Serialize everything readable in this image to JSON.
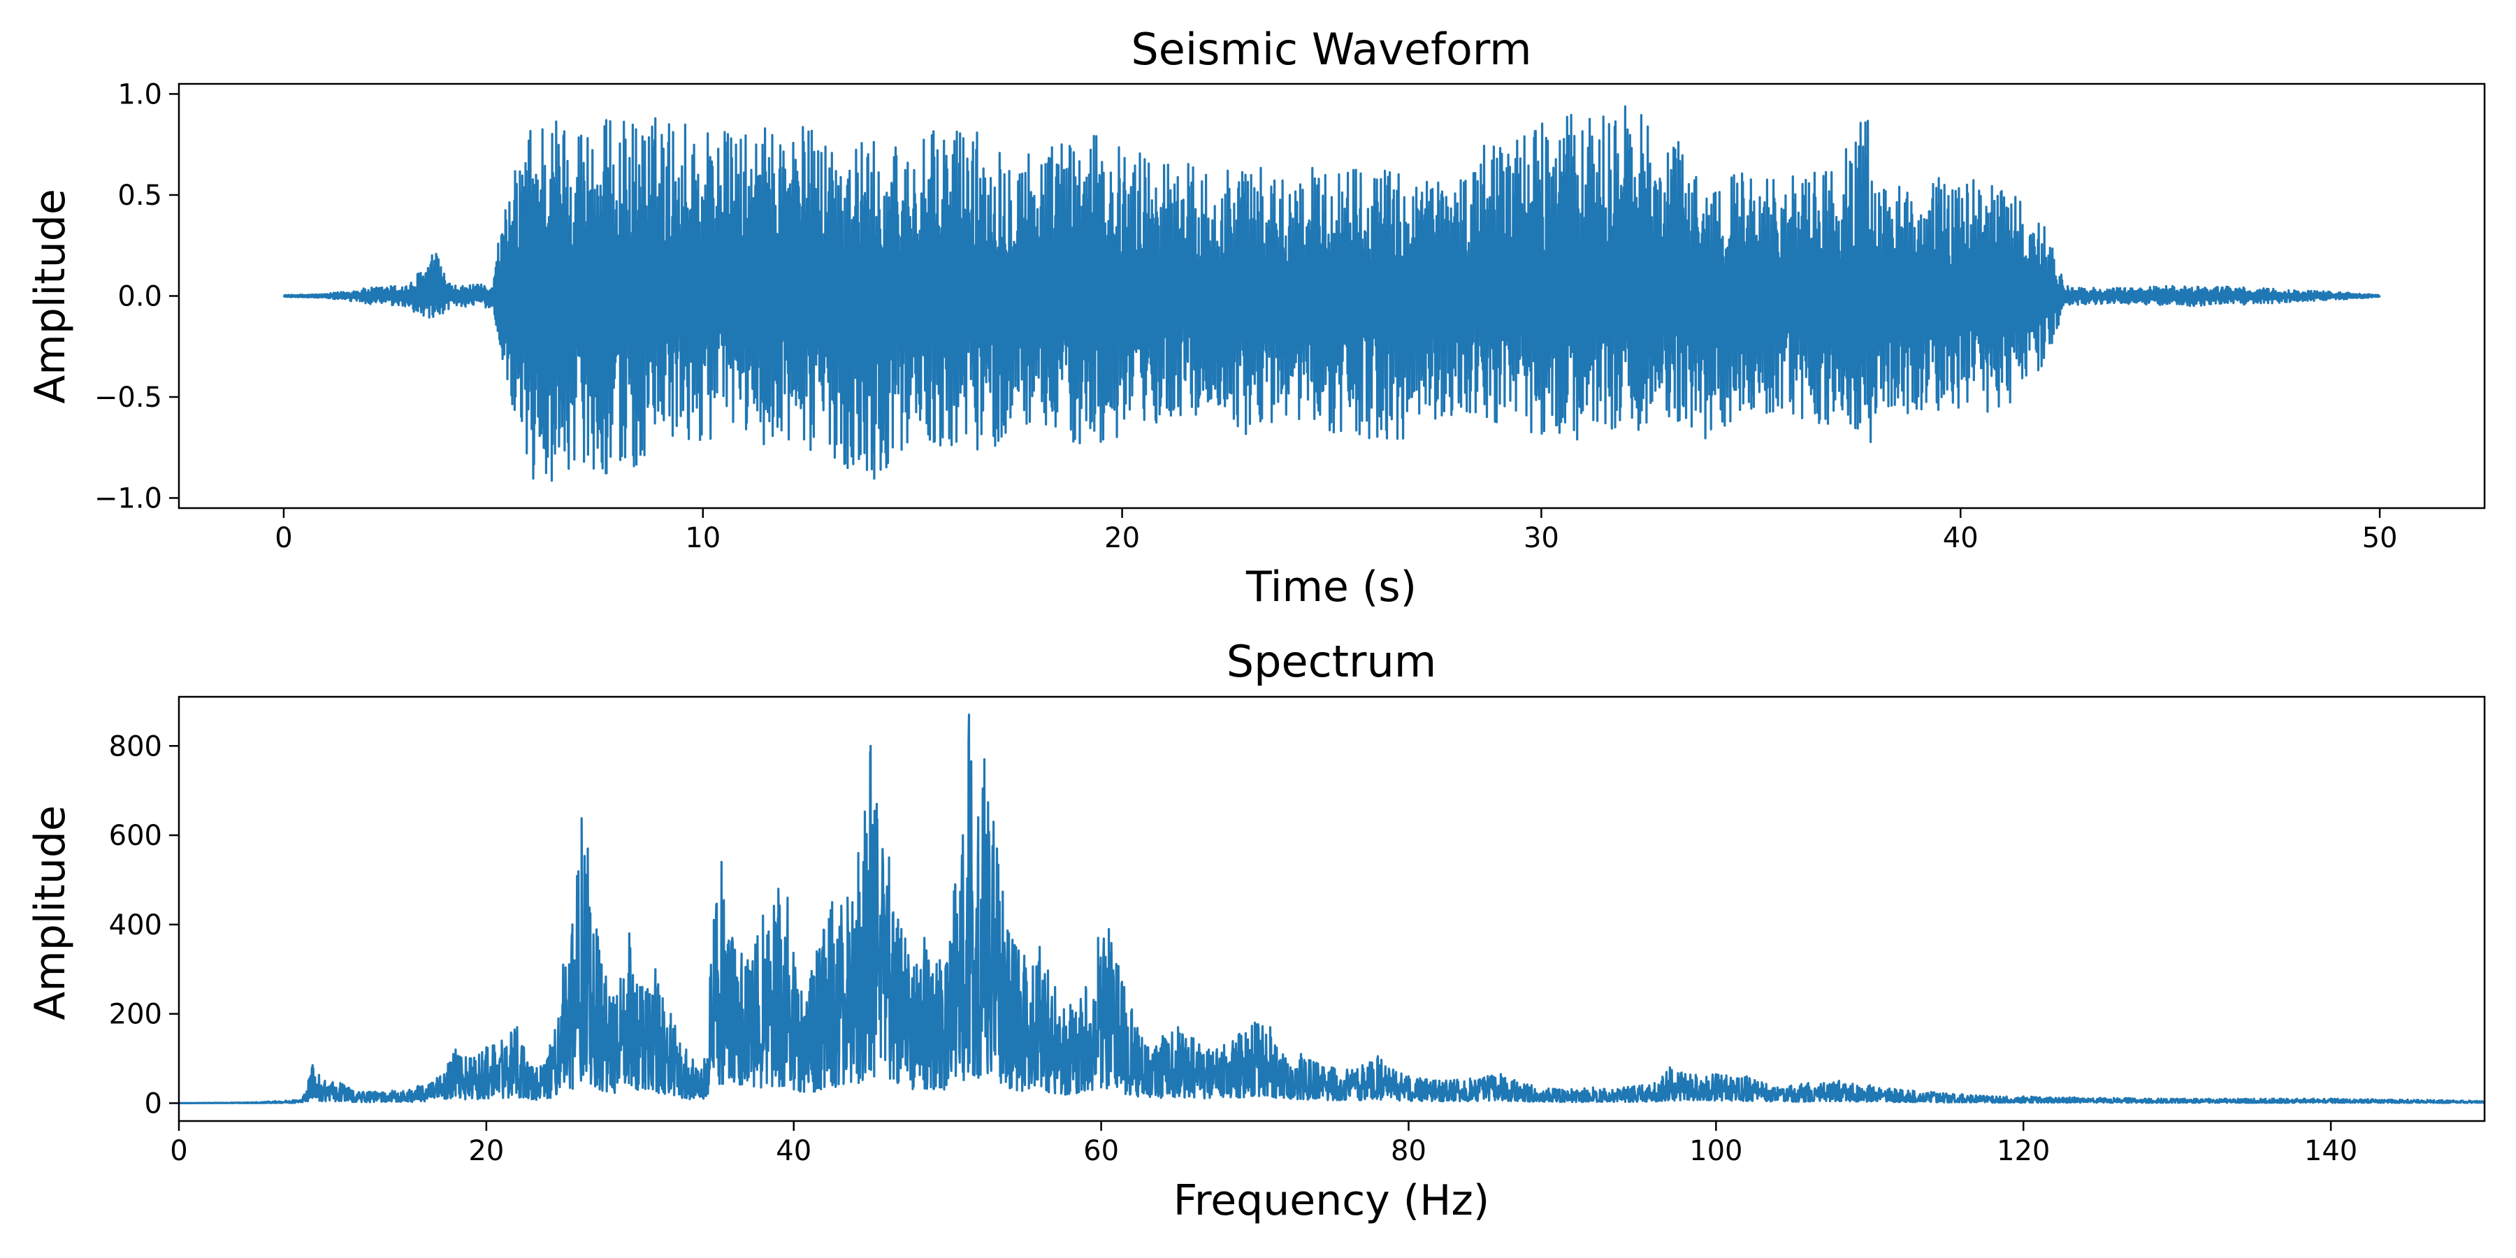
{
  "chart_data": [
    {
      "type": "line",
      "title": "Seismic Waveform",
      "xlabel": "Time (s)",
      "ylabel": "Amplitude",
      "xlim": [
        -2.5,
        52.5
      ],
      "ylim": [
        -1.05,
        1.05
      ],
      "xticks": [
        0,
        10,
        20,
        30,
        40,
        50
      ],
      "yticks": [
        -1.0,
        -0.5,
        0.0,
        0.5,
        1.0
      ],
      "xtick_labels": [
        "0",
        "10",
        "20",
        "30",
        "40",
        "50"
      ],
      "ytick_labels": [
        "−1.0",
        "−0.5",
        "0.0",
        "0.5",
        "1.0"
      ],
      "grid": false,
      "color": "#1f77b4",
      "series": [
        {
          "x": [
            0,
            1,
            2,
            3,
            3.6,
            4,
            5,
            5.1,
            5.7,
            6,
            7,
            8,
            9,
            10,
            11,
            12,
            13,
            14,
            15,
            16,
            17,
            18,
            19,
            20,
            21,
            22,
            23,
            24,
            25,
            26,
            27,
            28,
            29,
            30,
            31,
            32,
            33,
            34,
            35,
            36,
            37,
            37.8,
            38,
            39,
            40,
            41,
            42,
            42.5,
            43,
            44,
            45,
            46,
            47,
            48,
            49,
            50
          ],
          "y_upper": [
            0.005,
            0.01,
            0.04,
            0.06,
            0.23,
            0.05,
            0.06,
            0.28,
            0.78,
            0.93,
            0.9,
            0.88,
            0.9,
            0.87,
            0.8,
            0.88,
            0.82,
            0.77,
            0.75,
            0.88,
            0.8,
            0.74,
            0.82,
            0.75,
            0.7,
            0.65,
            0.65,
            0.6,
            0.68,
            0.65,
            0.6,
            0.62,
            0.82,
            0.86,
            0.92,
            0.94,
            0.83,
            0.58,
            0.65,
            0.6,
            0.65,
            0.93,
            0.58,
            0.55,
            0.62,
            0.57,
            0.35,
            0.05,
            0.04,
            0.04,
            0.05,
            0.05,
            0.04,
            0.03,
            0.02,
            0.005
          ],
          "y_lower": [
            -0.005,
            -0.01,
            -0.04,
            -0.06,
            -0.16,
            -0.05,
            -0.06,
            -0.25,
            -0.75,
            -1.0,
            -0.82,
            -0.92,
            -0.78,
            -0.72,
            -0.68,
            -0.8,
            -0.78,
            -0.94,
            -0.7,
            -0.8,
            -0.75,
            -0.62,
            -0.78,
            -0.72,
            -0.62,
            -0.58,
            -0.7,
            -0.62,
            -0.68,
            -0.75,
            -0.7,
            -0.62,
            -0.66,
            -0.7,
            -0.72,
            -0.68,
            -0.66,
            -0.72,
            -0.6,
            -0.62,
            -0.65,
            -0.82,
            -0.58,
            -0.58,
            -0.58,
            -0.57,
            -0.35,
            -0.05,
            -0.04,
            -0.04,
            -0.05,
            -0.05,
            -0.04,
            -0.03,
            -0.02,
            -0.005
          ]
        }
      ]
    },
    {
      "type": "line",
      "title": "Spectrum",
      "xlabel": "Frequency (Hz)",
      "ylabel": "Amplitude",
      "xlim": [
        0,
        150
      ],
      "ylim": [
        -40,
        910
      ],
      "xticks": [
        0,
        20,
        40,
        60,
        80,
        100,
        120,
        140
      ],
      "yticks": [
        0,
        200,
        400,
        600,
        800
      ],
      "xtick_labels": [
        "0",
        "20",
        "40",
        "60",
        "80",
        "100",
        "120",
        "140"
      ],
      "ytick_labels": [
        "0",
        "200",
        "400",
        "600",
        "800"
      ],
      "grid": false,
      "color": "#1f77b4",
      "series": [
        {
          "x": [
            0,
            5,
            8,
            8.7,
            9.5,
            10.5,
            12,
            15,
            17,
            18,
            19,
            20,
            21,
            22,
            23,
            24,
            25,
            25.6,
            26.2,
            26.6,
            27.5,
            28.5,
            29.3,
            30,
            31,
            32,
            33,
            34,
            34.8,
            35.3,
            36,
            37,
            38,
            39,
            39.6,
            40.5,
            41.5,
            42.5,
            43.5,
            44.2,
            45,
            45.4,
            46.2,
            47,
            48,
            48.5,
            49.5,
            50.5,
            51,
            51.4,
            52,
            52.4,
            53,
            54,
            55,
            56,
            57,
            58,
            59,
            59.8,
            60.5,
            61.5,
            62,
            63,
            64,
            65,
            66,
            67,
            68,
            69,
            70,
            71,
            72,
            73,
            74,
            75,
            76,
            77,
            78,
            79,
            80,
            82,
            84,
            86,
            88,
            90,
            92,
            94,
            96,
            97,
            98,
            100,
            102,
            104,
            106,
            108,
            110,
            112,
            114,
            116,
            118,
            120,
            125,
            130,
            135,
            140,
            145,
            150
          ],
          "y": [
            0,
            2,
            8,
            85,
            50,
            45,
            25,
            30,
            60,
            120,
            100,
            125,
            140,
            170,
            80,
            100,
            310,
            400,
            638,
            570,
            310,
            240,
            380,
            260,
            300,
            200,
            120,
            75,
            410,
            540,
            370,
            320,
            420,
            480,
            460,
            250,
            340,
            450,
            460,
            560,
            800,
            670,
            550,
            390,
            310,
            370,
            320,
            490,
            600,
            870,
            640,
            770,
            630,
            380,
            330,
            350,
            260,
            220,
            260,
            370,
            390,
            260,
            210,
            125,
            150,
            170,
            145,
            120,
            130,
            155,
            180,
            170,
            100,
            110,
            90,
            80,
            75,
            85,
            105,
            75,
            60,
            50,
            55,
            65,
            40,
            30,
            35,
            35,
            45,
            80,
            65,
            65,
            60,
            35,
            45,
            50,
            40,
            30,
            25,
            20,
            15,
            15,
            12,
            10,
            10,
            10,
            8,
            5
          ]
        }
      ]
    }
  ]
}
